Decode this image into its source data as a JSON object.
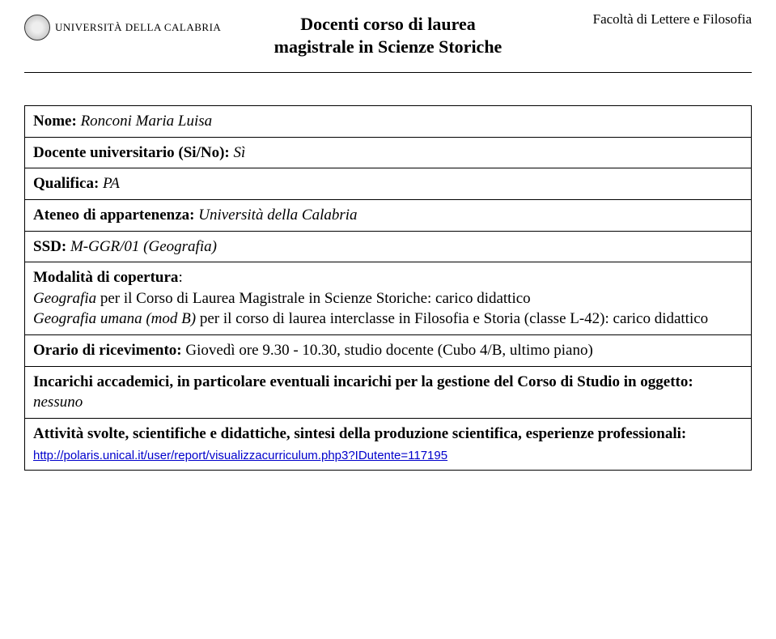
{
  "header": {
    "logo_university": "UNIVERSITÀ DELLA CALABRIA",
    "title_line1": "Docenti corso di laurea",
    "title_line2": "magistrale in Scienze Storiche",
    "faculty": "Facoltà di Lettere e Filosofia"
  },
  "rows": {
    "name_label": "Nome:",
    "name_value": " Ronconi Maria Luisa",
    "docente_label": "Docente universitario (Si/No):",
    "docente_value": " Sì",
    "qualifica_label": "Qualifica:",
    "qualifica_value": " PA",
    "ateneo_label": "Ateneo di appartenenza:",
    "ateneo_value": " Università della Calabria",
    "ssd_label": "SSD:",
    "ssd_value": " M-GGR/01 (Geografia)",
    "modalita_label": "Modalità di copertura",
    "modalita_colon": ":",
    "modalita_line1_a": "Geografia",
    "modalita_line1_b": " per il Corso di Laurea Magistrale in Scienze Storiche: carico didattico",
    "modalita_line2_a": "Geografia umana (mod B)",
    "modalita_line2_b": " per il corso di laurea interclasse in Filosofia e Storia (classe L-42): carico didattico",
    "orario_label": "Orario di ricevimento:",
    "orario_value": "  Giovedì ore 9.30 - 10.30, studio docente (Cubo 4/B, ultimo piano)",
    "incarichi_label": "Incarichi accademici, in particolare eventuali incarichi per la gestione del Corso di Studio in oggetto:",
    "incarichi_value": " nessuno",
    "attivita_label": "Attività svolte, scientifiche e didattiche,  sintesi della produzione scientifica, esperienze professionali:",
    "attivita_link": "http://polaris.unical.it/user/report/visualizzacurriculum.php3?IDutente=117195"
  }
}
